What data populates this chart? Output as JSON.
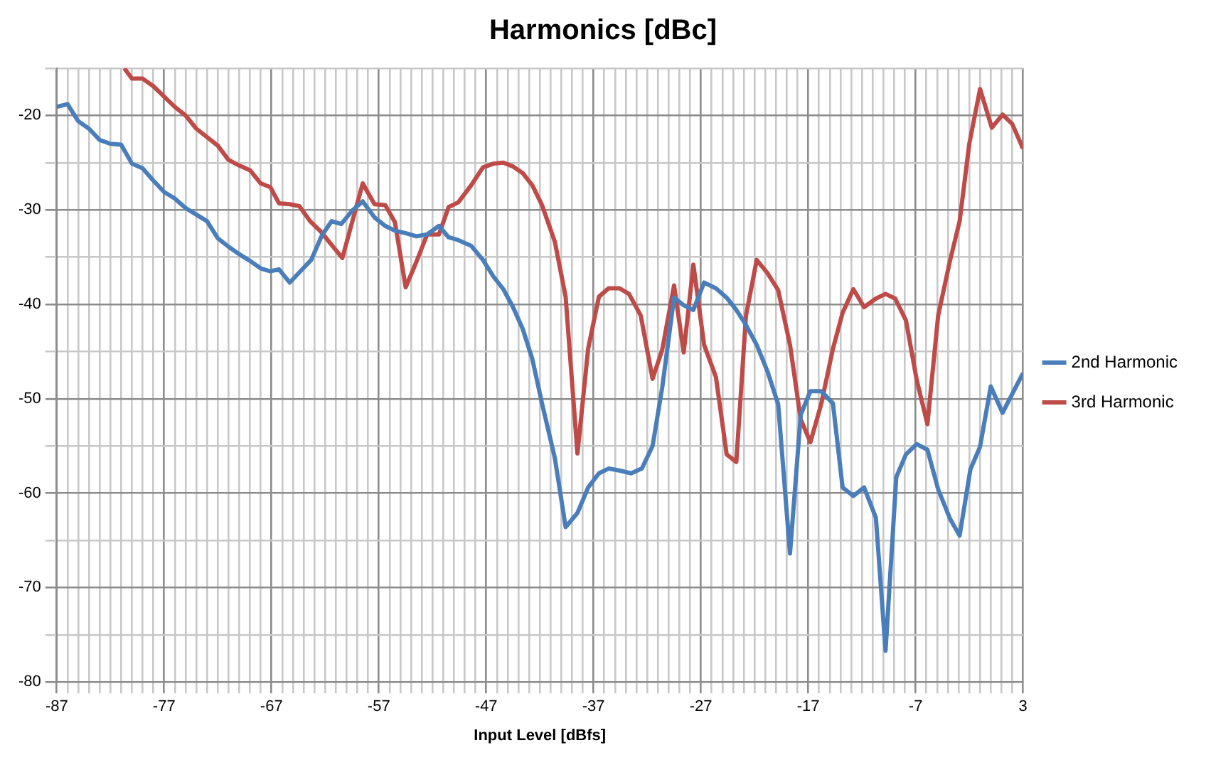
{
  "chart_data": {
    "type": "line",
    "title": "Harmonics [dBc]",
    "xlabel": "Input Level [dBfs]",
    "xlim": [
      -87,
      3
    ],
    "xticks": [
      -87,
      {
        "value": -86,
        "label": null
      },
      {
        "value": -85,
        "label": null
      },
      {
        "value": -84,
        "label": null
      },
      {
        "value": -83,
        "label": null
      },
      {
        "value": -82,
        "label": null
      },
      {
        "value": -81,
        "label": null
      },
      {
        "value": -80,
        "label": null
      },
      {
        "value": -79,
        "label": null
      },
      {
        "value": -78,
        "label": null
      },
      -77,
      {
        "value": -76,
        "label": null
      },
      {
        "value": -75,
        "label": null
      },
      {
        "value": -74,
        "label": null
      },
      {
        "value": -73,
        "label": null
      },
      {
        "value": -72,
        "label": null
      },
      {
        "value": -71,
        "label": null
      },
      {
        "value": -70,
        "label": null
      },
      {
        "value": -69,
        "label": null
      },
      {
        "value": -68,
        "label": null
      },
      -67,
      {
        "value": -66,
        "label": null
      },
      {
        "value": -65,
        "label": null
      },
      {
        "value": -64,
        "label": null
      },
      {
        "value": -63,
        "label": null
      },
      {
        "value": -62,
        "label": null
      },
      {
        "value": -61,
        "label": null
      },
      {
        "value": -60,
        "label": null
      },
      {
        "value": -59,
        "label": null
      },
      {
        "value": -58,
        "label": null
      },
      -57,
      {
        "value": -56,
        "label": null
      },
      {
        "value": -55,
        "label": null
      },
      {
        "value": -54,
        "label": null
      },
      {
        "value": -53,
        "label": null
      },
      {
        "value": -52,
        "label": null
      },
      {
        "value": -51,
        "label": null
      },
      {
        "value": -50,
        "label": null
      },
      {
        "value": -49,
        "label": null
      },
      {
        "value": -48,
        "label": null
      },
      -47,
      {
        "value": -46,
        "label": null
      },
      {
        "value": -45,
        "label": null
      },
      {
        "value": -44,
        "label": null
      },
      {
        "value": -43,
        "label": null
      },
      {
        "value": -42,
        "label": null
      },
      {
        "value": -41,
        "label": null
      },
      {
        "value": -40,
        "label": null
      },
      {
        "value": -39,
        "label": null
      },
      {
        "value": -38,
        "label": null
      },
      -37,
      {
        "value": -36,
        "label": null
      },
      {
        "value": -35,
        "label": null
      },
      {
        "value": -34,
        "label": null
      },
      {
        "value": -33,
        "label": null
      },
      {
        "value": -32,
        "label": null
      },
      {
        "value": -31,
        "label": null
      },
      {
        "value": -30,
        "label": null
      },
      {
        "value": -29,
        "label": null
      },
      {
        "value": -28,
        "label": null
      },
      -27,
      {
        "value": -26,
        "label": null
      },
      {
        "value": -25,
        "label": null
      },
      {
        "value": -24,
        "label": null
      },
      {
        "value": -23,
        "label": null
      },
      {
        "value": -22,
        "label": null
      },
      {
        "value": -21,
        "label": null
      },
      {
        "value": -20,
        "label": null
      },
      {
        "value": -19,
        "label": null
      },
      {
        "value": -18,
        "label": null
      },
      -17,
      {
        "value": -16,
        "label": null
      },
      {
        "value": -15,
        "label": null
      },
      {
        "value": -14,
        "label": null
      },
      {
        "value": -13,
        "label": null
      },
      {
        "value": -12,
        "label": null
      },
      {
        "value": -11,
        "label": null
      },
      {
        "value": -10,
        "label": null
      },
      {
        "value": -9,
        "label": null
      },
      {
        "value": -8,
        "label": null
      },
      -7,
      {
        "value": -6,
        "label": null
      },
      {
        "value": -5,
        "label": null
      },
      {
        "value": -4,
        "label": null
      },
      {
        "value": -3,
        "label": null
      },
      {
        "value": -2,
        "label": null
      },
      {
        "value": -1,
        "label": null
      },
      {
        "value": 0,
        "label": null
      },
      {
        "value": 1,
        "label": null
      },
      {
        "value": 2,
        "label": null
      },
      3
    ],
    "ylim": [
      -80,
      -15
    ],
    "yticks": [
      -80,
      {
        "value": -75,
        "label": null
      },
      -70,
      {
        "value": -65,
        "label": null
      },
      -60,
      {
        "value": -55,
        "label": null
      },
      -50,
      {
        "value": -45,
        "label": null
      },
      -40,
      {
        "value": -35,
        "label": null
      },
      -30,
      {
        "value": -25,
        "label": null
      },
      -20,
      {
        "value": -15,
        "label": null
      }
    ],
    "grid": true,
    "legend": "right",
    "marker": "none",
    "line_style": "solid",
    "series": [
      {
        "name": "2nd Harmonic",
        "color": "#4a7ebb",
        "x": [
          -87,
          -86,
          -85,
          -84,
          -83,
          -82,
          -81,
          -80,
          -79,
          -78,
          -77,
          -76,
          -75,
          -74,
          -73,
          -72,
          -71,
          -70,
          -69,
          -68,
          -67.1,
          -66.3,
          -65.3,
          -64.3,
          -63.3,
          -62.3,
          -61.4,
          -60.5,
          -59.5,
          -58.5,
          -57.4,
          -56.4,
          -55.5,
          -54.4,
          -53.5,
          -52.5,
          -51.4,
          -50.5,
          -49.6,
          -48.4,
          -47.3,
          -46.3,
          -45.4,
          -44.5,
          -43.6,
          -42.7,
          -41.8,
          -40.6,
          -39.6,
          -38.5,
          -37.5,
          -36.5,
          -35.6,
          -34.6,
          -33.5,
          -32.5,
          -31.5,
          -30.6,
          -29.5,
          -28.6,
          -27.7,
          -26.7,
          -25.6,
          -24.6,
          -23.7,
          -22.8,
          -21.8,
          -20.8,
          -19.8,
          -18.7,
          -17.7,
          -16.8,
          -15.8,
          -14.7,
          -13.8,
          -12.8,
          -11.8,
          -10.7,
          -9.8,
          -8.8,
          -7.9,
          -6.9,
          -5.9,
          -4.9,
          -3.8,
          -2.9,
          -1.9,
          -1,
          0,
          1.1,
          2,
          3
        ],
        "values": [
          -19.1,
          -18.8,
          -20.6,
          -21.4,
          -22.6,
          -23,
          -23.1,
          -25.1,
          -25.6,
          -26.9,
          -28.1,
          -28.8,
          -29.8,
          -30.5,
          -31.2,
          -33,
          -33.9,
          -34.7,
          -35.4,
          -36.2,
          -36.5,
          -36.3,
          -37.7,
          -36.5,
          -35.3,
          -32.7,
          -31.2,
          -31.5,
          -30.1,
          -29.1,
          -30.8,
          -31.7,
          -32.2,
          -32.5,
          -32.8,
          -32.6,
          -31.7,
          -32.9,
          -33.2,
          -33.8,
          -35.3,
          -37.1,
          -38.4,
          -40.3,
          -42.6,
          -45.8,
          -50.5,
          -56.3,
          -63.6,
          -62.1,
          -59.4,
          -57.9,
          -57.4,
          -57.6,
          -57.9,
          -57.4,
          -55,
          -48.8,
          -39.3,
          -40.1,
          -40.6,
          -37.7,
          -38.3,
          -39.3,
          -40.6,
          -42.2,
          -44.3,
          -47.1,
          -50.6,
          -66.4,
          -51.7,
          -49.2,
          -49.2,
          -50.5,
          -59.4,
          -60.3,
          -59.4,
          -62.6,
          -76.7,
          -58.3,
          -55.9,
          -54.8,
          -55.4,
          -59.6,
          -62.7,
          -64.5,
          -57.5,
          -55.1,
          -48.7,
          -51.5,
          -49.5,
          -47.3
        ]
      },
      {
        "name": "3rd Harmonic",
        "color": "#be4b48",
        "x": [
          -80.7,
          -80,
          -79,
          -78,
          -77,
          -76,
          -75,
          -74,
          -73,
          -72,
          -71,
          -70,
          -69,
          -68,
          -67.1,
          -66.3,
          -65.3,
          -64.4,
          -63.4,
          -62.4,
          -61.4,
          -60.4,
          -58.5,
          -57.4,
          -56.4,
          -55.5,
          -54.5,
          -53.5,
          -52.5,
          -51.4,
          -50.5,
          -49.6,
          -48.4,
          -47.3,
          -46.3,
          -45.4,
          -44.5,
          -43.6,
          -42.7,
          -41.8,
          -40.6,
          -39.6,
          -38.5,
          -37.5,
          -36.5,
          -35.6,
          -34.6,
          -33.7,
          -32.6,
          -31.5,
          -30.6,
          -29.5,
          -28.6,
          -27.7,
          -26.7,
          -25.6,
          -24.6,
          -23.7,
          -22.8,
          -21.8,
          -20.8,
          -19.8,
          -18.7,
          -17.7,
          -16.8,
          -15.8,
          -14.7,
          -13.8,
          -12.8,
          -11.8,
          -10.7,
          -9.8,
          -8.9,
          -7.9,
          -6.9,
          -5.9,
          -4.9,
          -3.8,
          -2.9,
          -2,
          -1,
          0.1,
          1.1,
          2,
          3
        ],
        "values": [
          -15,
          -16.1,
          -16.1,
          -16.9,
          -18,
          -19.1,
          -20,
          -21.4,
          -22.3,
          -23.2,
          -24.7,
          -25.3,
          -25.8,
          -27.2,
          -27.6,
          -29.3,
          -29.4,
          -29.6,
          -31.2,
          -32.3,
          -33.7,
          -35.1,
          -27.2,
          -29.4,
          -29.5,
          -31.3,
          -38.2,
          -35.5,
          -32.6,
          -32.6,
          -29.7,
          -29.2,
          -27.4,
          -25.5,
          -25.1,
          -25,
          -25.4,
          -26.1,
          -27.4,
          -29.5,
          -33.4,
          -39.2,
          -55.8,
          -44.7,
          -39.2,
          -38.3,
          -38.3,
          -38.9,
          -41.2,
          -47.9,
          -44.8,
          -38,
          -45.1,
          -35.8,
          -44.3,
          -47.7,
          -55.9,
          -56.7,
          -41.2,
          -35.3,
          -36.7,
          -38.5,
          -44.3,
          -52.2,
          -54.6,
          -50.6,
          -44.7,
          -40.9,
          -38.4,
          -40.3,
          -39.4,
          -38.9,
          -39.4,
          -41.7,
          -48,
          -52.7,
          -41.2,
          -35.4,
          -31.2,
          -23,
          -17.2,
          -21.3,
          -19.9,
          -20.9,
          -23.5
        ]
      }
    ]
  }
}
